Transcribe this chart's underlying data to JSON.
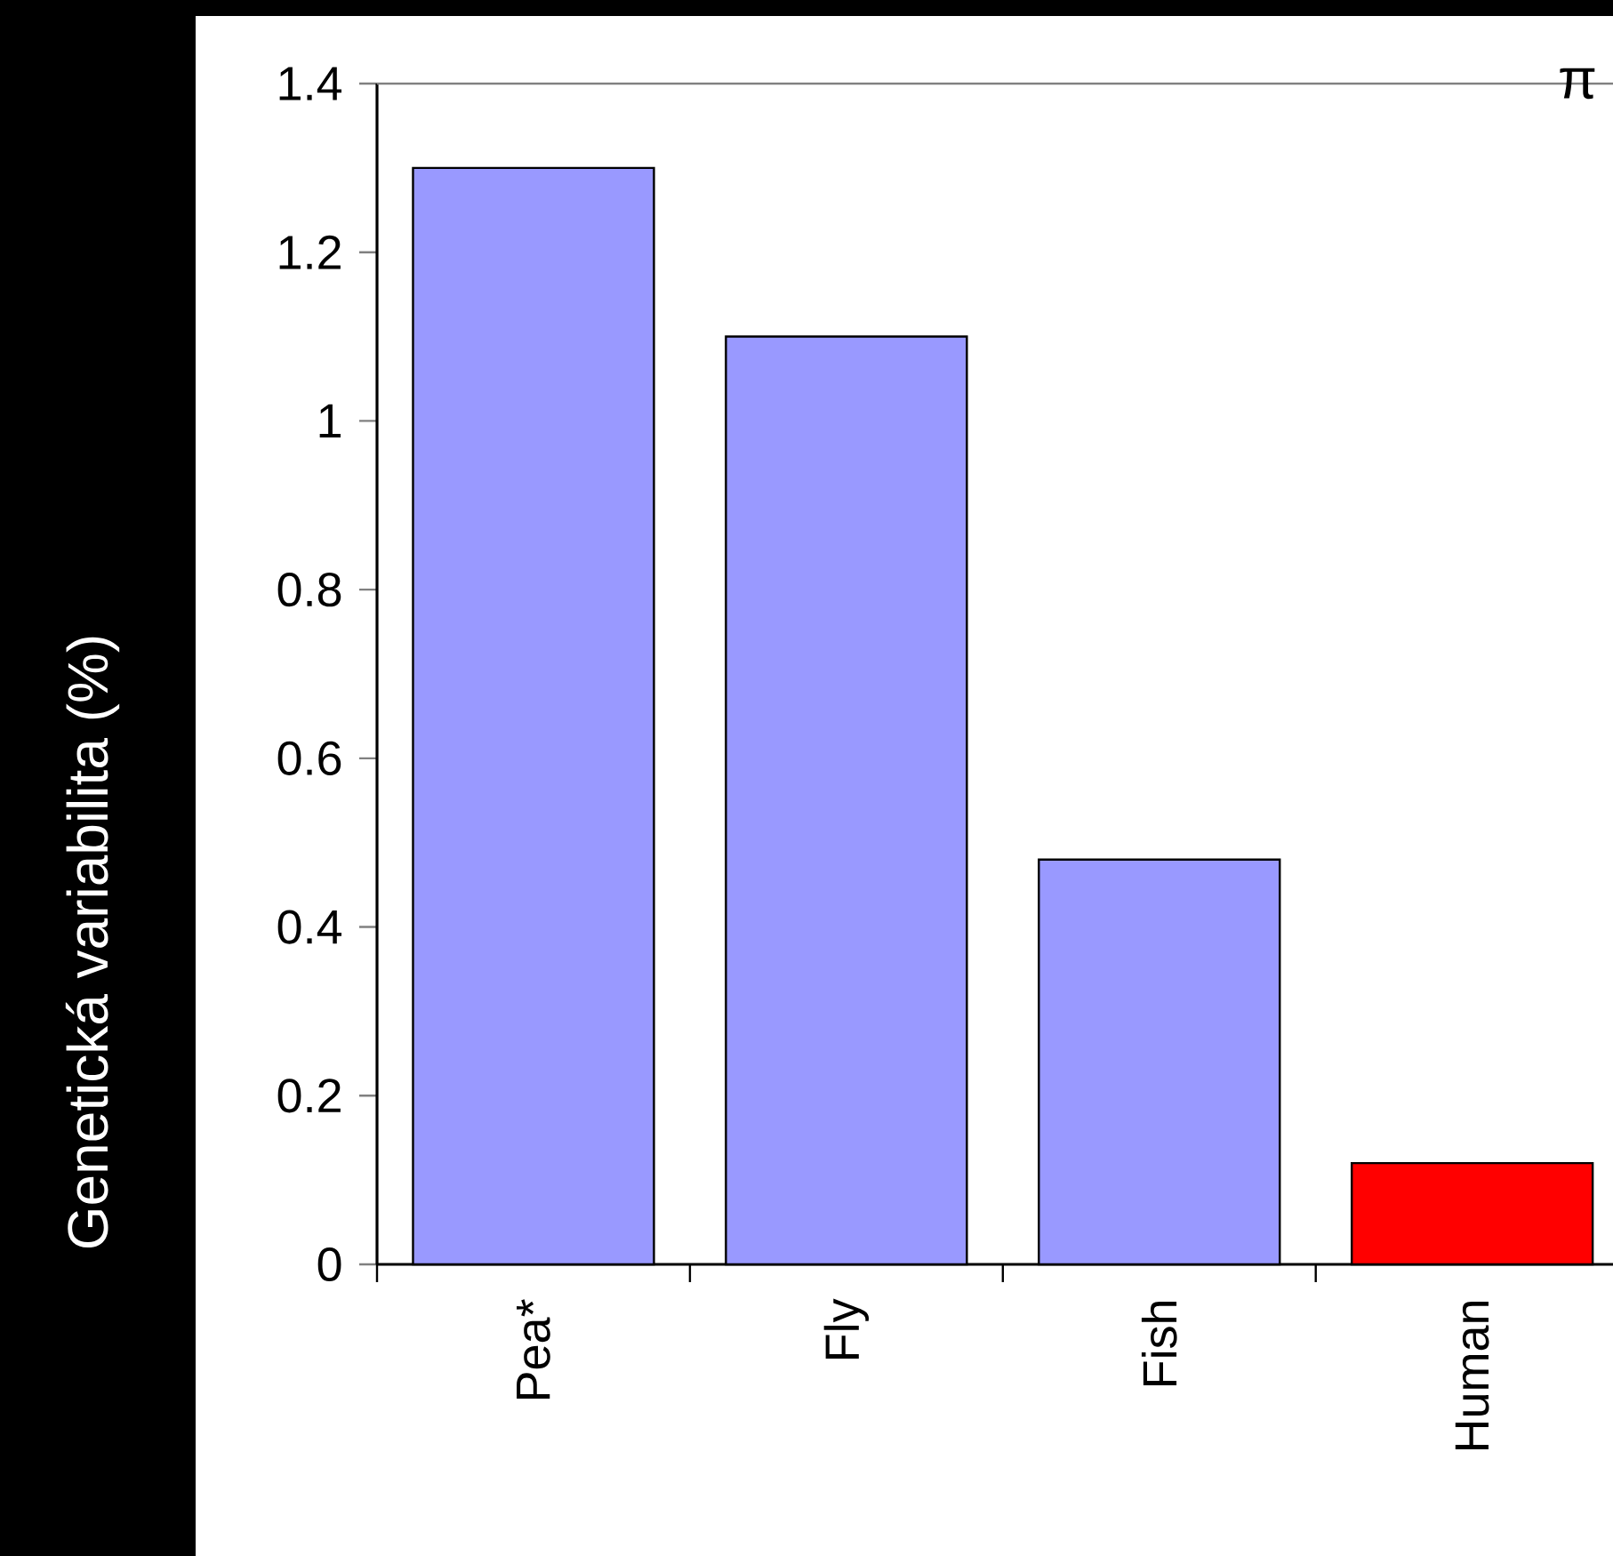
{
  "chart_data": {
    "type": "bar",
    "ylabel": "Genetická variabilita (%)",
    "categories": [
      "Pea*",
      "Fly",
      "Fish",
      "Human"
    ],
    "values": [
      1.3,
      1.1,
      0.48,
      0.12
    ],
    "colors": [
      "#9999ff",
      "#9999ff",
      "#9999ff",
      "#ff0000"
    ],
    "ylim": [
      0,
      1.4
    ],
    "yticks": [
      0,
      0.2,
      0.4,
      0.6,
      0.8,
      1,
      1.2,
      1.4
    ],
    "ref_lines": [
      {
        "axis": "y",
        "value": 1.4,
        "label": "π",
        "color": "#808080"
      }
    ],
    "grid": false
  }
}
